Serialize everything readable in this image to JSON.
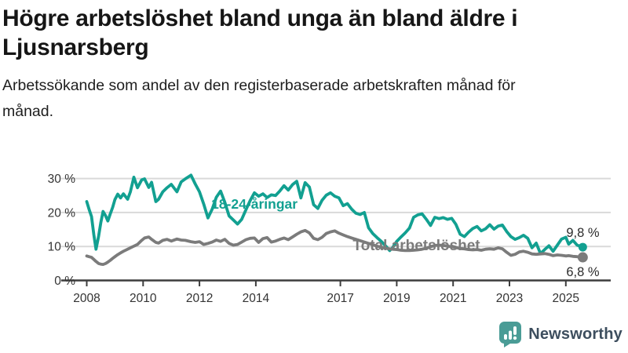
{
  "header": {
    "title": "Högre arbetslöshet bland unga än bland äldre i Ljusnarsberg",
    "subtitle": "Arbetssökande som andel av den registerbaserade arbetskraften månad för månad."
  },
  "footer": {
    "brand": "Newsworthy",
    "icon": "bar-chart-speech-bubble-icon",
    "icon_color": "#4a9c96",
    "text_color": "#3d4e5e"
  },
  "chart_data": {
    "type": "line",
    "title": "Högre arbetslöshet bland unga än bland äldre i Ljusnarsberg",
    "subtitle": "Arbetssökande som andel av den registerbaserade arbetskraften månad för månad.",
    "xlabel": "",
    "ylabel": "",
    "grid": true,
    "legend_position": "inline-labels",
    "xlim": [
      2007.8,
      2025.9
    ],
    "ylim": [
      0,
      32
    ],
    "xticks": [
      2008,
      2010,
      2012,
      2014,
      2017,
      2019,
      2021,
      2023,
      2025
    ],
    "yticks": [
      0,
      10,
      20,
      30
    ],
    "ytick_suffix": " %",
    "axis_color": "#3d3d3d",
    "grid_color": "#d9d9d9",
    "x": [
      2008.0,
      2008.08,
      2008.17,
      2008.25,
      2008.33,
      2008.42,
      2008.5,
      2008.58,
      2008.67,
      2008.75,
      2008.83,
      2008.92,
      2009.0,
      2009.1,
      2009.2,
      2009.3,
      2009.45,
      2009.55,
      2009.67,
      2009.8,
      2009.95,
      2010.05,
      2010.2,
      2010.3,
      2010.45,
      2010.55,
      2010.7,
      2010.85,
      2011.0,
      2011.2,
      2011.35,
      2011.5,
      2011.7,
      2011.85,
      2012.0,
      2012.15,
      2012.3,
      2012.45,
      2012.6,
      2012.75,
      2012.9,
      2013.05,
      2013.2,
      2013.35,
      2013.5,
      2013.65,
      2013.8,
      2013.95,
      2014.1,
      2014.25,
      2014.4,
      2014.55,
      2014.7,
      2014.85,
      2015.0,
      2015.15,
      2015.3,
      2015.45,
      2015.6,
      2015.75,
      2015.9,
      2016.05,
      2016.2,
      2016.35,
      2016.5,
      2016.65,
      2016.8,
      2016.95,
      2017.1,
      2017.25,
      2017.4,
      2017.55,
      2017.7,
      2017.85,
      2018.0,
      2018.15,
      2018.3,
      2018.45,
      2018.6,
      2018.75,
      2018.85,
      2019.0,
      2019.15,
      2019.3,
      2019.45,
      2019.6,
      2019.75,
      2019.9,
      2020.05,
      2020.2,
      2020.35,
      2020.5,
      2020.65,
      2020.8,
      2020.95,
      2021.1,
      2021.25,
      2021.4,
      2021.55,
      2021.7,
      2021.85,
      2022.0,
      2022.15,
      2022.3,
      2022.45,
      2022.6,
      2022.75,
      2022.9,
      2023.05,
      2023.2,
      2023.35,
      2023.5,
      2023.65,
      2023.8,
      2023.95,
      2024.1,
      2024.25,
      2024.4,
      2024.55,
      2024.7,
      2024.85,
      2025.0,
      2025.1,
      2025.25,
      2025.4,
      2025.6
    ],
    "series": [
      {
        "name": "18-24-åringar",
        "color": "#12a091",
        "end_label": "9,8 %",
        "end_label_above": true,
        "label_anchor": {
          "x": 2013.95,
          "y": 22.5
        },
        "values": [
          23.2,
          21.0,
          18.8,
          13.5,
          9.2,
          13.0,
          17.0,
          20.3,
          19.0,
          17.5,
          19.5,
          21.5,
          23.8,
          25.4,
          24.3,
          25.5,
          23.9,
          26.1,
          30.4,
          27.3,
          29.6,
          29.9,
          27.4,
          28.9,
          23.2,
          23.9,
          26.1,
          27.3,
          28.3,
          26.1,
          29.0,
          29.9,
          31.0,
          28.4,
          26.1,
          22.5,
          18.4,
          21.0,
          24.5,
          26.3,
          23.0,
          19.0,
          17.8,
          16.6,
          18.0,
          20.8,
          23.5,
          25.8,
          24.8,
          25.5,
          24.4,
          25.2,
          25.0,
          26.3,
          27.9,
          26.6,
          28.2,
          29.2,
          24.3,
          28.8,
          27.5,
          22.3,
          21.2,
          23.6,
          25.1,
          25.8,
          24.8,
          24.3,
          22.0,
          22.6,
          21.0,
          19.8,
          19.4,
          20.0,
          15.5,
          13.8,
          12.6,
          11.5,
          10.2,
          8.8,
          9.6,
          11.5,
          12.8,
          14.0,
          15.4,
          18.6,
          19.3,
          19.6,
          18.0,
          16.2,
          18.6,
          18.2,
          18.5,
          18.0,
          18.3,
          16.5,
          13.6,
          12.9,
          14.2,
          15.3,
          15.9,
          14.6,
          15.2,
          16.4,
          15.1,
          16.0,
          16.3,
          14.4,
          12.9,
          12.1,
          12.6,
          13.3,
          12.4,
          9.6,
          11.0,
          7.9,
          9.1,
          10.2,
          8.6,
          10.4,
          12.2,
          12.7,
          10.7,
          11.8,
          10.4,
          9.8
        ]
      },
      {
        "name": "Total arbetslöshet",
        "color": "#7b7b7b",
        "end_label": "6,8 %",
        "end_label_above": false,
        "label_anchor": {
          "x": 2019.7,
          "y": 10.3
        },
        "values": [
          7.2,
          7.0,
          6.8,
          6.2,
          5.6,
          5.0,
          4.8,
          4.7,
          5.0,
          5.4,
          5.9,
          6.5,
          7.0,
          7.6,
          8.1,
          8.6,
          9.2,
          9.6,
          10.1,
          10.6,
          11.8,
          12.5,
          12.8,
          12.1,
          11.2,
          11.0,
          11.8,
          12.1,
          11.6,
          12.2,
          11.9,
          11.8,
          11.4,
          11.2,
          11.4,
          10.6,
          10.9,
          11.3,
          11.9,
          11.5,
          12.1,
          10.9,
          10.4,
          10.6,
          11.3,
          12.0,
          12.4,
          12.5,
          11.2,
          12.3,
          12.6,
          11.3,
          11.6,
          12.1,
          12.5,
          12.0,
          12.8,
          13.6,
          14.3,
          14.7,
          14.0,
          12.4,
          12.0,
          12.7,
          13.8,
          14.3,
          14.6,
          13.9,
          13.4,
          12.9,
          12.5,
          12.1,
          11.7,
          11.3,
          10.9,
          10.5,
          10.1,
          9.8,
          9.5,
          9.3,
          9.2,
          9.1,
          8.9,
          8.8,
          8.8,
          8.9,
          9.0,
          9.2,
          9.5,
          9.9,
          10.3,
          10.4,
          10.3,
          10.1,
          9.9,
          9.7,
          9.4,
          9.3,
          9.1,
          9.0,
          9.1,
          8.9,
          9.2,
          9.3,
          9.2,
          9.6,
          9.3,
          8.3,
          7.4,
          7.7,
          8.4,
          8.6,
          8.3,
          7.8,
          7.7,
          7.8,
          7.9,
          7.7,
          7.3,
          7.5,
          7.4,
          7.2,
          7.3,
          7.1,
          7.0,
          6.8
        ]
      }
    ]
  }
}
